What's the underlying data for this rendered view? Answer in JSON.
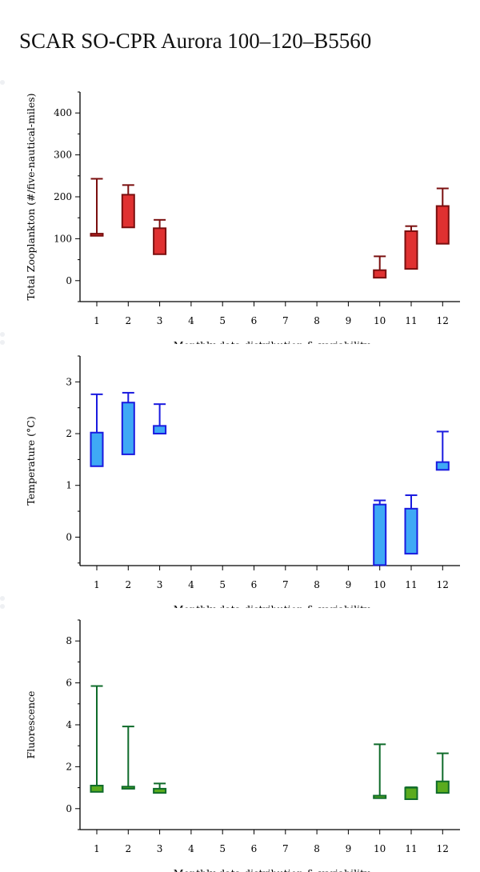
{
  "title": "SCAR SO-CPR Aurora 100–120–B5560",
  "chart_data": [
    {
      "type": "box",
      "ylabel": "Total Zooplankton (#/five-nautical-miles)",
      "xlabel": "Monthly data distribution & variability",
      "categories": [
        "1",
        "2",
        "3",
        "4",
        "5",
        "6",
        "7",
        "8",
        "9",
        "10",
        "11",
        "12"
      ],
      "yticks": [
        0,
        100,
        200,
        300,
        400
      ],
      "ylim": [
        -50,
        450
      ],
      "fill": "#e03131",
      "stroke": "#7a0f0f",
      "boxes": [
        {
          "month": 1,
          "q1": 107,
          "q3": 112,
          "whisker_high": 243
        },
        {
          "month": 2,
          "q1": 127,
          "q3": 205,
          "whisker_high": 228
        },
        {
          "month": 3,
          "q1": 63,
          "q3": 125,
          "whisker_high": 145
        },
        {
          "month": 10,
          "q1": 7,
          "q3": 25,
          "whisker_high": 58
        },
        {
          "month": 11,
          "q1": 28,
          "q3": 118,
          "whisker_high": 130
        },
        {
          "month": 12,
          "q1": 88,
          "q3": 178,
          "whisker_high": 220
        }
      ]
    },
    {
      "type": "box",
      "ylabel": "Temperature (°C)",
      "xlabel": "Monthly data distribution & variability",
      "categories": [
        "1",
        "2",
        "3",
        "4",
        "5",
        "6",
        "7",
        "8",
        "9",
        "10",
        "11",
        "12"
      ],
      "yticks": [
        0,
        1,
        2,
        3
      ],
      "ylim": [
        -0.55,
        3.5
      ],
      "fill": "#3fa9f5",
      "stroke": "#1a1adf",
      "boxes": [
        {
          "month": 1,
          "q1": 1.37,
          "q3": 2.02,
          "whisker_high": 2.76
        },
        {
          "month": 2,
          "q1": 1.6,
          "q3": 2.6,
          "whisker_high": 2.79
        },
        {
          "month": 3,
          "q1": 2.0,
          "q3": 2.15,
          "whisker_high": 2.57
        },
        {
          "month": 10,
          "q1": -0.54,
          "q3": 0.63,
          "whisker_high": 0.71
        },
        {
          "month": 11,
          "q1": -0.32,
          "q3": 0.55,
          "whisker_high": 0.81
        },
        {
          "month": 12,
          "q1": 1.3,
          "q3": 1.45,
          "whisker_high": 2.04
        }
      ]
    },
    {
      "type": "box",
      "ylabel": "Fluorescence",
      "xlabel": "Monthly data distribution & variability",
      "categories": [
        "1",
        "2",
        "3",
        "4",
        "5",
        "6",
        "7",
        "8",
        "9",
        "10",
        "11",
        "12"
      ],
      "yticks": [
        0,
        2,
        4,
        6,
        8
      ],
      "ylim": [
        -1,
        9
      ],
      "fill": "#5aab1e",
      "stroke": "#0f6b2a",
      "boxes": [
        {
          "month": 1,
          "q1": 0.8,
          "q3": 1.1,
          "whisker_high": 5.85
        },
        {
          "month": 2,
          "q1": 0.95,
          "q3": 1.05,
          "whisker_high": 3.92
        },
        {
          "month": 3,
          "q1": 0.75,
          "q3": 0.95,
          "whisker_high": 1.2
        },
        {
          "month": 10,
          "q1": 0.5,
          "q3": 0.62,
          "whisker_high": 3.07
        },
        {
          "month": 11,
          "q1": 0.45,
          "q3": 1.0,
          "whisker_high": 1.02
        },
        {
          "month": 12,
          "q1": 0.75,
          "q3": 1.3,
          "whisker_high": 2.64
        }
      ]
    }
  ]
}
